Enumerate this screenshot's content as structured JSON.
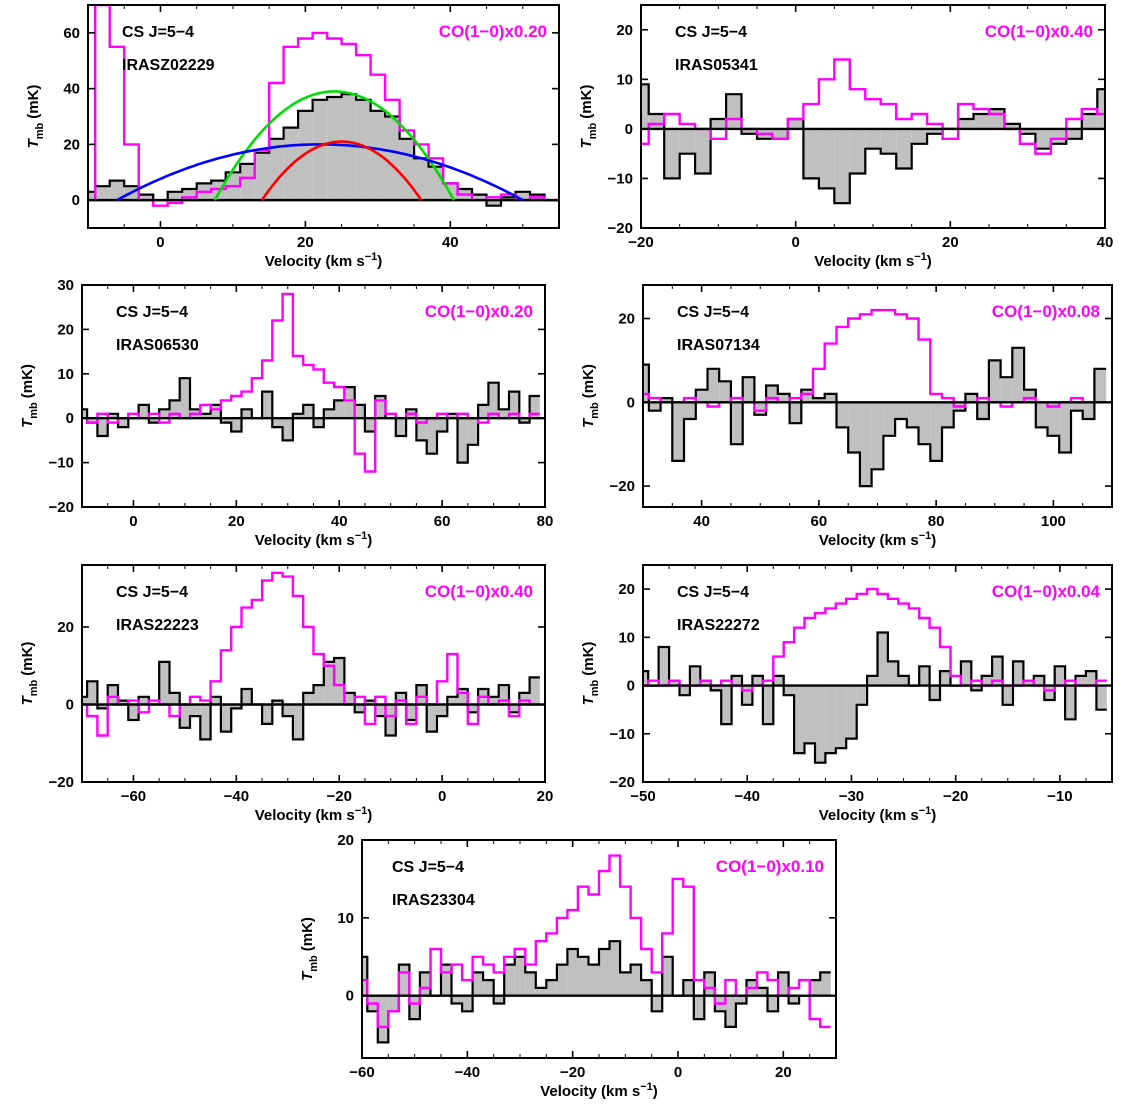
{
  "figure": {
    "xlabel_prefix": "Velocity (km s",
    "xlabel_sup": "−1",
    "xlabel_suffix": ")",
    "ylabel_T": "T",
    "ylabel_sub": "mb",
    "ylabel_unit": "(mK)",
    "colors": {
      "cs": "#000000",
      "fill": "#c0c0c0",
      "co": "#ff00ff",
      "total": "#00dd00",
      "broad": "#0000ff",
      "narrow": "#ff0000"
    }
  },
  "chart_data": [
    {
      "type": "histogram",
      "line": "CS J=5−4",
      "source": "IRASZ02229",
      "co_label": "CO(1−0)x0.20",
      "xlim": [
        -10,
        55
      ],
      "ylim": [
        -10,
        70
      ],
      "xticks": [
        0,
        20,
        40
      ],
      "yticks": [
        0,
        20,
        40,
        60
      ],
      "x": [
        -10,
        -8,
        -6,
        -4,
        -2,
        0,
        2,
        4,
        6,
        8,
        10,
        12,
        14,
        16,
        18,
        20,
        22,
        24,
        26,
        28,
        30,
        32,
        34,
        36,
        38,
        40,
        42,
        44,
        46,
        48,
        50,
        52,
        54
      ],
      "cs": [
        3,
        5,
        7,
        5,
        2,
        0,
        3,
        4,
        6,
        7,
        10,
        13,
        17,
        22,
        26,
        32,
        36,
        37,
        38,
        36,
        32,
        30,
        22,
        15,
        12,
        6,
        4,
        2,
        -2,
        1,
        3,
        2,
        0
      ],
      "co": [
        0,
        95,
        55,
        20,
        0,
        -2,
        -1,
        1,
        3,
        4,
        5,
        8,
        18,
        42,
        55,
        58,
        60,
        58,
        56,
        52,
        45,
        36,
        25,
        20,
        15,
        6,
        2,
        0,
        1,
        2,
        0,
        1,
        0
      ],
      "fits": [
        {
          "name": "total",
          "amp": 39,
          "center": 24,
          "width": 33
        },
        {
          "name": "broad",
          "amp": 20,
          "center": 22,
          "width": 56
        },
        {
          "name": "narrow",
          "amp": 21,
          "center": 25,
          "width": 22
        }
      ]
    },
    {
      "type": "histogram",
      "line": "CS J=5−4",
      "source": "IRAS05341",
      "co_label": "CO(1−0)x0.40",
      "xlim": [
        -20,
        40
      ],
      "ylim": [
        -20,
        25
      ],
      "xticks": [
        -20,
        0,
        20,
        40
      ],
      "yticks": [
        -20,
        -10,
        0,
        10,
        20
      ],
      "x": [
        -20,
        -18,
        -16,
        -14,
        -12,
        -10,
        -8,
        -6,
        -4,
        -2,
        0,
        2,
        4,
        6,
        8,
        10,
        12,
        14,
        16,
        18,
        20,
        22,
        24,
        26,
        28,
        30,
        32,
        34,
        36,
        38,
        40
      ],
      "cs": [
        9,
        3,
        -10,
        -5,
        -9,
        2,
        7,
        -1,
        -2,
        -2,
        2,
        -10,
        -12,
        -15,
        -9,
        -4,
        -5,
        -8,
        -3,
        -1,
        0,
        2,
        3,
        4,
        1,
        -1,
        -4,
        -3,
        -2,
        3,
        8
      ],
      "co": [
        -3,
        1,
        3,
        1,
        0,
        -2,
        2,
        0,
        -1,
        -2,
        2,
        5,
        10,
        14,
        8,
        6,
        5,
        2,
        3,
        1,
        -2,
        5,
        4,
        3,
        0,
        -3,
        -5,
        -2,
        2,
        4,
        3
      ]
    },
    {
      "type": "histogram",
      "line": "CS J=5−4",
      "source": "IRAS06530",
      "co_label": "CO(1−0)x0.20",
      "xlim": [
        -10,
        80
      ],
      "ylim": [
        -20,
        30
      ],
      "xticks": [
        0,
        20,
        40,
        60,
        80
      ],
      "yticks": [
        -20,
        -10,
        0,
        10,
        20,
        30
      ],
      "x": [
        -10,
        -8,
        -6,
        -4,
        -2,
        0,
        2,
        4,
        6,
        8,
        10,
        12,
        14,
        16,
        18,
        20,
        22,
        24,
        26,
        28,
        30,
        32,
        34,
        36,
        38,
        40,
        42,
        44,
        46,
        48,
        50,
        52,
        54,
        56,
        58,
        60,
        62,
        64,
        66,
        68,
        70,
        72,
        74,
        76,
        78
      ],
      "cs": [
        2,
        -1,
        -4,
        1,
        -2,
        0,
        3,
        -1,
        2,
        4,
        9,
        2,
        1,
        3,
        -1,
        -3,
        2,
        0,
        6,
        -2,
        -5,
        1,
        3,
        -2,
        2,
        4,
        7,
        3,
        -3,
        5,
        0,
        -4,
        2,
        -5,
        -8,
        -3,
        1,
        -10,
        -6,
        3,
        8,
        2,
        6,
        -1,
        5
      ],
      "co": [
        0,
        -1,
        1,
        -1,
        0,
        1,
        0,
        1,
        -1,
        1,
        0,
        1,
        3,
        2,
        4,
        5,
        6,
        9,
        13,
        22,
        28,
        14,
        12,
        11,
        8,
        7,
        4,
        -8,
        -12,
        4,
        1,
        0,
        1,
        -1,
        0,
        1,
        0,
        1,
        0,
        -1,
        1,
        0,
        1,
        0,
        1
      ]
    },
    {
      "type": "histogram",
      "line": "CS J=5−4",
      "source": "IRAS07134",
      "co_label": "CO(1−0)x0.08",
      "xlim": [
        30,
        110
      ],
      "ylim": [
        -25,
        28
      ],
      "xticks": [
        40,
        60,
        80,
        100
      ],
      "yticks": [
        -20,
        0,
        20
      ],
      "x": [
        30,
        32,
        34,
        36,
        38,
        40,
        42,
        44,
        46,
        48,
        50,
        52,
        54,
        56,
        58,
        60,
        62,
        64,
        66,
        68,
        70,
        72,
        74,
        76,
        78,
        80,
        82,
        84,
        86,
        88,
        90,
        92,
        94,
        96,
        98,
        100,
        102,
        104,
        106,
        108
      ],
      "cs": [
        9,
        -2,
        1,
        -14,
        -4,
        3,
        8,
        5,
        -10,
        6,
        -3,
        4,
        2,
        -5,
        3,
        1,
        2,
        -6,
        -12,
        -20,
        -16,
        -8,
        -4,
        -6,
        -10,
        -14,
        -6,
        -2,
        2,
        -4,
        10,
        6,
        13,
        3,
        -6,
        -8,
        -12,
        -2,
        -4,
        8
      ],
      "co": [
        2,
        1,
        0,
        0,
        1,
        0,
        -1,
        0,
        1,
        0,
        -2,
        1,
        0,
        1,
        2,
        8,
        14,
        18,
        20,
        21,
        22,
        22,
        21,
        20,
        15,
        2,
        1,
        -1,
        0,
        1,
        0,
        -1,
        0,
        1,
        0,
        -1,
        0,
        1,
        0,
        0
      ]
    },
    {
      "type": "histogram",
      "line": "CS J=5−4",
      "source": "IRAS22223",
      "co_label": "CO(1−0)x0.40",
      "xlim": [
        -70,
        20
      ],
      "ylim": [
        -20,
        36
      ],
      "xticks": [
        -60,
        -40,
        -20,
        0,
        20
      ],
      "yticks": [
        -20,
        0,
        20
      ],
      "x": [
        -70,
        -68,
        -66,
        -64,
        -62,
        -60,
        -58,
        -56,
        -54,
        -52,
        -50,
        -48,
        -46,
        -44,
        -42,
        -40,
        -38,
        -36,
        -34,
        -32,
        -30,
        -28,
        -26,
        -24,
        -22,
        -20,
        -18,
        -16,
        -14,
        -12,
        -10,
        -8,
        -6,
        -4,
        -2,
        0,
        2,
        4,
        6,
        8,
        10,
        12,
        14,
        16,
        18
      ],
      "cs": [
        2,
        6,
        -1,
        5,
        1,
        -4,
        2,
        0,
        11,
        3,
        -6,
        -3,
        -9,
        2,
        -7,
        -1,
        4,
        0,
        -5,
        1,
        -3,
        -9,
        3,
        5,
        11,
        12,
        3,
        -2,
        1,
        -3,
        -8,
        3,
        -4,
        5,
        -7,
        -3,
        2,
        4,
        -2,
        4,
        2,
        5,
        -2,
        3,
        7
      ],
      "co": [
        0,
        -3,
        -8,
        2,
        0,
        1,
        -2,
        1,
        0,
        -3,
        0,
        2,
        1,
        6,
        14,
        20,
        25,
        27,
        32,
        34,
        33,
        28,
        20,
        13,
        10,
        5,
        0,
        2,
        -5,
        2,
        -3,
        1,
        -5,
        2,
        0,
        6,
        13,
        3,
        -5,
        2,
        0,
        1,
        -3,
        1,
        0
      ]
    },
    {
      "type": "histogram",
      "line": "CS J=5−4",
      "source": "IRAS22272",
      "co_label": "CO(1−0)x0.04",
      "xlim": [
        -50,
        -5
      ],
      "ylim": [
        -20,
        25
      ],
      "xticks": [
        -50,
        -40,
        -30,
        -20,
        -10
      ],
      "yticks": [
        -20,
        -10,
        0,
        10,
        20
      ],
      "x": [
        -50,
        -49,
        -48,
        -47,
        -46,
        -45,
        -44,
        -43,
        -42,
        -41,
        -40,
        -39,
        -38,
        -37,
        -36,
        -35,
        -34,
        -33,
        -32,
        -31,
        -30,
        -29,
        -28,
        -27,
        -26,
        -25,
        -24,
        -23,
        -22,
        -21,
        -20,
        -19,
        -18,
        -17,
        -16,
        -15,
        -14,
        -13,
        -12,
        -11,
        -10,
        -9,
        -8,
        -7,
        -6
      ],
      "cs": [
        3,
        0,
        8,
        1,
        -2,
        4,
        1,
        -1,
        -8,
        2,
        -4,
        2,
        -8,
        2,
        -2,
        -14,
        -12,
        -16,
        -14,
        -13,
        -11,
        -4,
        2,
        11,
        5,
        2,
        0,
        4,
        -3,
        3,
        0,
        5,
        -1,
        2,
        6,
        -4,
        5,
        1,
        2,
        -3,
        4,
        -7,
        2,
        3,
        -5
      ],
      "co": [
        0,
        1,
        0,
        1,
        0,
        0,
        1,
        0,
        1,
        0,
        -1,
        0,
        1,
        6,
        9,
        12,
        14,
        15,
        16,
        17,
        18,
        19,
        20,
        19,
        18,
        17,
        16,
        14,
        12,
        8,
        2,
        0,
        1,
        0,
        1,
        0,
        0,
        1,
        0,
        -1,
        0,
        1,
        0,
        0,
        1
      ]
    },
    {
      "type": "histogram",
      "line": "CS J=5−4",
      "source": "IRAS23304",
      "co_label": "CO(1−0)x0.10",
      "xlim": [
        -60,
        30
      ],
      "ylim": [
        -8,
        20
      ],
      "xticks": [
        -60,
        -40,
        -20,
        0,
        20
      ],
      "yticks": [
        0,
        10,
        20
      ],
      "x": [
        -60,
        -58,
        -56,
        -54,
        -52,
        -50,
        -48,
        -46,
        -44,
        -42,
        -40,
        -38,
        -36,
        -34,
        -32,
        -30,
        -28,
        -26,
        -24,
        -22,
        -20,
        -18,
        -16,
        -14,
        -12,
        -10,
        -8,
        -6,
        -4,
        -2,
        0,
        2,
        4,
        6,
        8,
        10,
        12,
        14,
        16,
        18,
        20,
        22,
        24,
        26,
        28
      ],
      "cs": [
        5,
        -2,
        -6,
        -2,
        4,
        -3,
        3,
        0,
        4,
        -1,
        -2,
        3,
        2,
        -1,
        4,
        5,
        3,
        1,
        2,
        4,
        6,
        5,
        4,
        6,
        7,
        3,
        4,
        2,
        -2,
        5,
        0,
        2,
        -3,
        3,
        -2,
        -4,
        -1,
        2,
        1,
        -2,
        3,
        -1,
        0,
        2,
        3
      ],
      "co": [
        2,
        -1,
        -4,
        -2,
        3,
        -1,
        1,
        6,
        3,
        4,
        2,
        5,
        4,
        3,
        5,
        6,
        4,
        7,
        8,
        10,
        11,
        14,
        13,
        16,
        18,
        14,
        10,
        6,
        3,
        8,
        15,
        14,
        2,
        1,
        -1,
        2,
        0,
        1,
        3,
        2,
        0,
        1,
        2,
        -3,
        -4
      ]
    }
  ]
}
